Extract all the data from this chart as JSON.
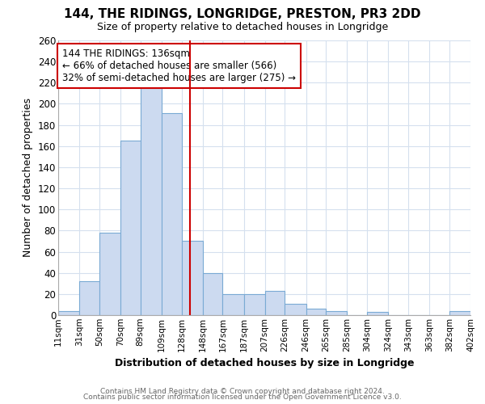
{
  "title": "144, THE RIDINGS, LONGRIDGE, PRESTON, PR3 2DD",
  "subtitle": "Size of property relative to detached houses in Longridge",
  "xlabel": "Distribution of detached houses by size in Longridge",
  "ylabel": "Number of detached properties",
  "footnote1": "Contains HM Land Registry data © Crown copyright and database right 2024.",
  "footnote2": "Contains public sector information licensed under the Open Government Licence v3.0.",
  "bar_edges": [
    11,
    31,
    50,
    70,
    89,
    109,
    128,
    148,
    167,
    187,
    207,
    226,
    246,
    265,
    285,
    304,
    324,
    343,
    363,
    382,
    402
  ],
  "bar_heights": [
    4,
    32,
    78,
    165,
    219,
    191,
    70,
    40,
    20,
    20,
    23,
    11,
    6,
    4,
    0,
    3,
    0,
    0,
    0,
    4
  ],
  "bar_color": "#ccdaf0",
  "bar_edgecolor": "#7aaad4",
  "tick_labels": [
    "11sqm",
    "31sqm",
    "50sqm",
    "70sqm",
    "89sqm",
    "109sqm",
    "128sqm",
    "148sqm",
    "167sqm",
    "187sqm",
    "207sqm",
    "226sqm",
    "246sqm",
    "265sqm",
    "285sqm",
    "304sqm",
    "324sqm",
    "343sqm",
    "363sqm",
    "382sqm",
    "402sqm"
  ],
  "vline_x": 136,
  "vline_color": "#cc0000",
  "annotation_title": "144 THE RIDINGS: 136sqm",
  "annotation_line1": "← 66% of detached houses are smaller (566)",
  "annotation_line2": "32% of semi-detached houses are larger (275) →",
  "annotation_box_color": "#ffffff",
  "annotation_box_edgecolor": "#cc0000",
  "ylim": [
    0,
    260
  ],
  "yticks": [
    0,
    20,
    40,
    60,
    80,
    100,
    120,
    140,
    160,
    180,
    200,
    220,
    240,
    260
  ],
  "background_color": "#ffffff",
  "grid_color": "#d5e0ee"
}
